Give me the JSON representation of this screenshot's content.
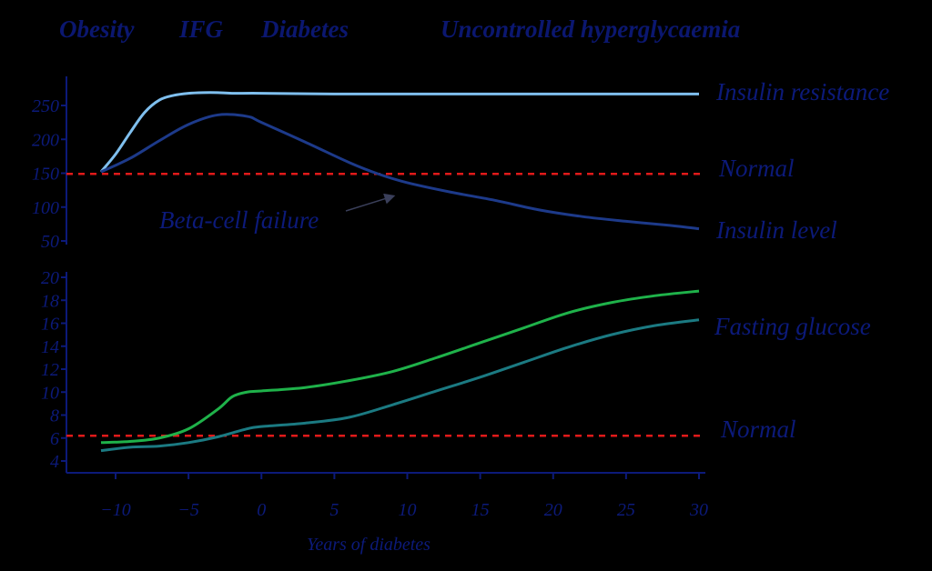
{
  "stages": [
    "Obesity",
    "IFG",
    "Diabetes",
    "Uncontrolled hyperglycaemia"
  ],
  "colors": {
    "text": "#0c1a7a",
    "insulin_resistance": "#7fbfee",
    "insulin_level": "#1d3a8a",
    "fasting_glucose_green": "#1fb24a",
    "fasting_glucose_teal": "#1b7a82",
    "normal": "#e01a1a"
  },
  "chart_data": [
    {
      "type": "line",
      "panel": "insulin",
      "yticks": [
        50,
        100,
        150,
        200,
        250
      ],
      "ylim": [
        40,
        290
      ],
      "xlim": [
        -13,
        30
      ],
      "series": [
        {
          "name": "Insulin resistance",
          "color": "#7fbfee",
          "x": [
            -11,
            -10,
            -9,
            -8,
            -7,
            -6,
            -5,
            -4,
            -3,
            -2,
            0,
            5,
            10,
            15,
            20,
            25,
            30
          ],
          "y": [
            152,
            178,
            210,
            240,
            258,
            265,
            268,
            269,
            269,
            268,
            268,
            267,
            267,
            267,
            267,
            267,
            267
          ]
        },
        {
          "name": "Insulin level",
          "color": "#1d3a8a",
          "x": [
            -11,
            -9,
            -7,
            -5,
            -3,
            -1,
            0,
            3,
            6,
            8,
            10,
            13,
            16,
            19,
            22,
            25,
            28,
            30
          ],
          "y": [
            152,
            172,
            198,
            222,
            236,
            234,
            225,
            196,
            166,
            149,
            136,
            122,
            110,
            96,
            86,
            79,
            73,
            68
          ]
        }
      ],
      "reference": {
        "name": "Normal",
        "value": 149
      },
      "annotation": {
        "text": "Beta-cell failure",
        "arrow_to": [
          9,
          140
        ]
      }
    },
    {
      "type": "line",
      "panel": "glucose",
      "yticks": [
        4,
        6,
        8,
        10,
        12,
        14,
        16,
        18,
        20
      ],
      "ylim": [
        3,
        20.5
      ],
      "xlim": [
        -13,
        30
      ],
      "xticks": [
        "-10",
        "-5",
        "0",
        "5",
        "10",
        "15",
        "20",
        "25",
        "30"
      ],
      "xlabel": "Years of diabetes",
      "series": [
        {
          "name": "Fasting glucose",
          "color": "#1fb24a",
          "x": [
            -11,
            -9,
            -7,
            -5,
            -3,
            -2,
            -1,
            0,
            3,
            6,
            9,
            12,
            15,
            18,
            21,
            24,
            27,
            30
          ],
          "y": [
            5.6,
            5.7,
            6.0,
            6.8,
            8.5,
            9.6,
            10.0,
            10.1,
            10.4,
            11.0,
            11.8,
            13.0,
            14.3,
            15.6,
            16.9,
            17.8,
            18.4,
            18.8
          ]
        },
        {
          "name": "",
          "color": "#1b7a82",
          "x": [
            -11,
            -9,
            -7,
            -5,
            -3,
            -1,
            0,
            3,
            6,
            9,
            12,
            15,
            18,
            21,
            24,
            27,
            30
          ],
          "y": [
            4.9,
            5.2,
            5.3,
            5.6,
            6.1,
            6.8,
            7.0,
            7.3,
            7.8,
            8.9,
            10.1,
            11.3,
            12.6,
            13.9,
            15.0,
            15.8,
            16.3
          ]
        }
      ],
      "reference": {
        "name": "Normal",
        "value": 6.2
      }
    }
  ]
}
